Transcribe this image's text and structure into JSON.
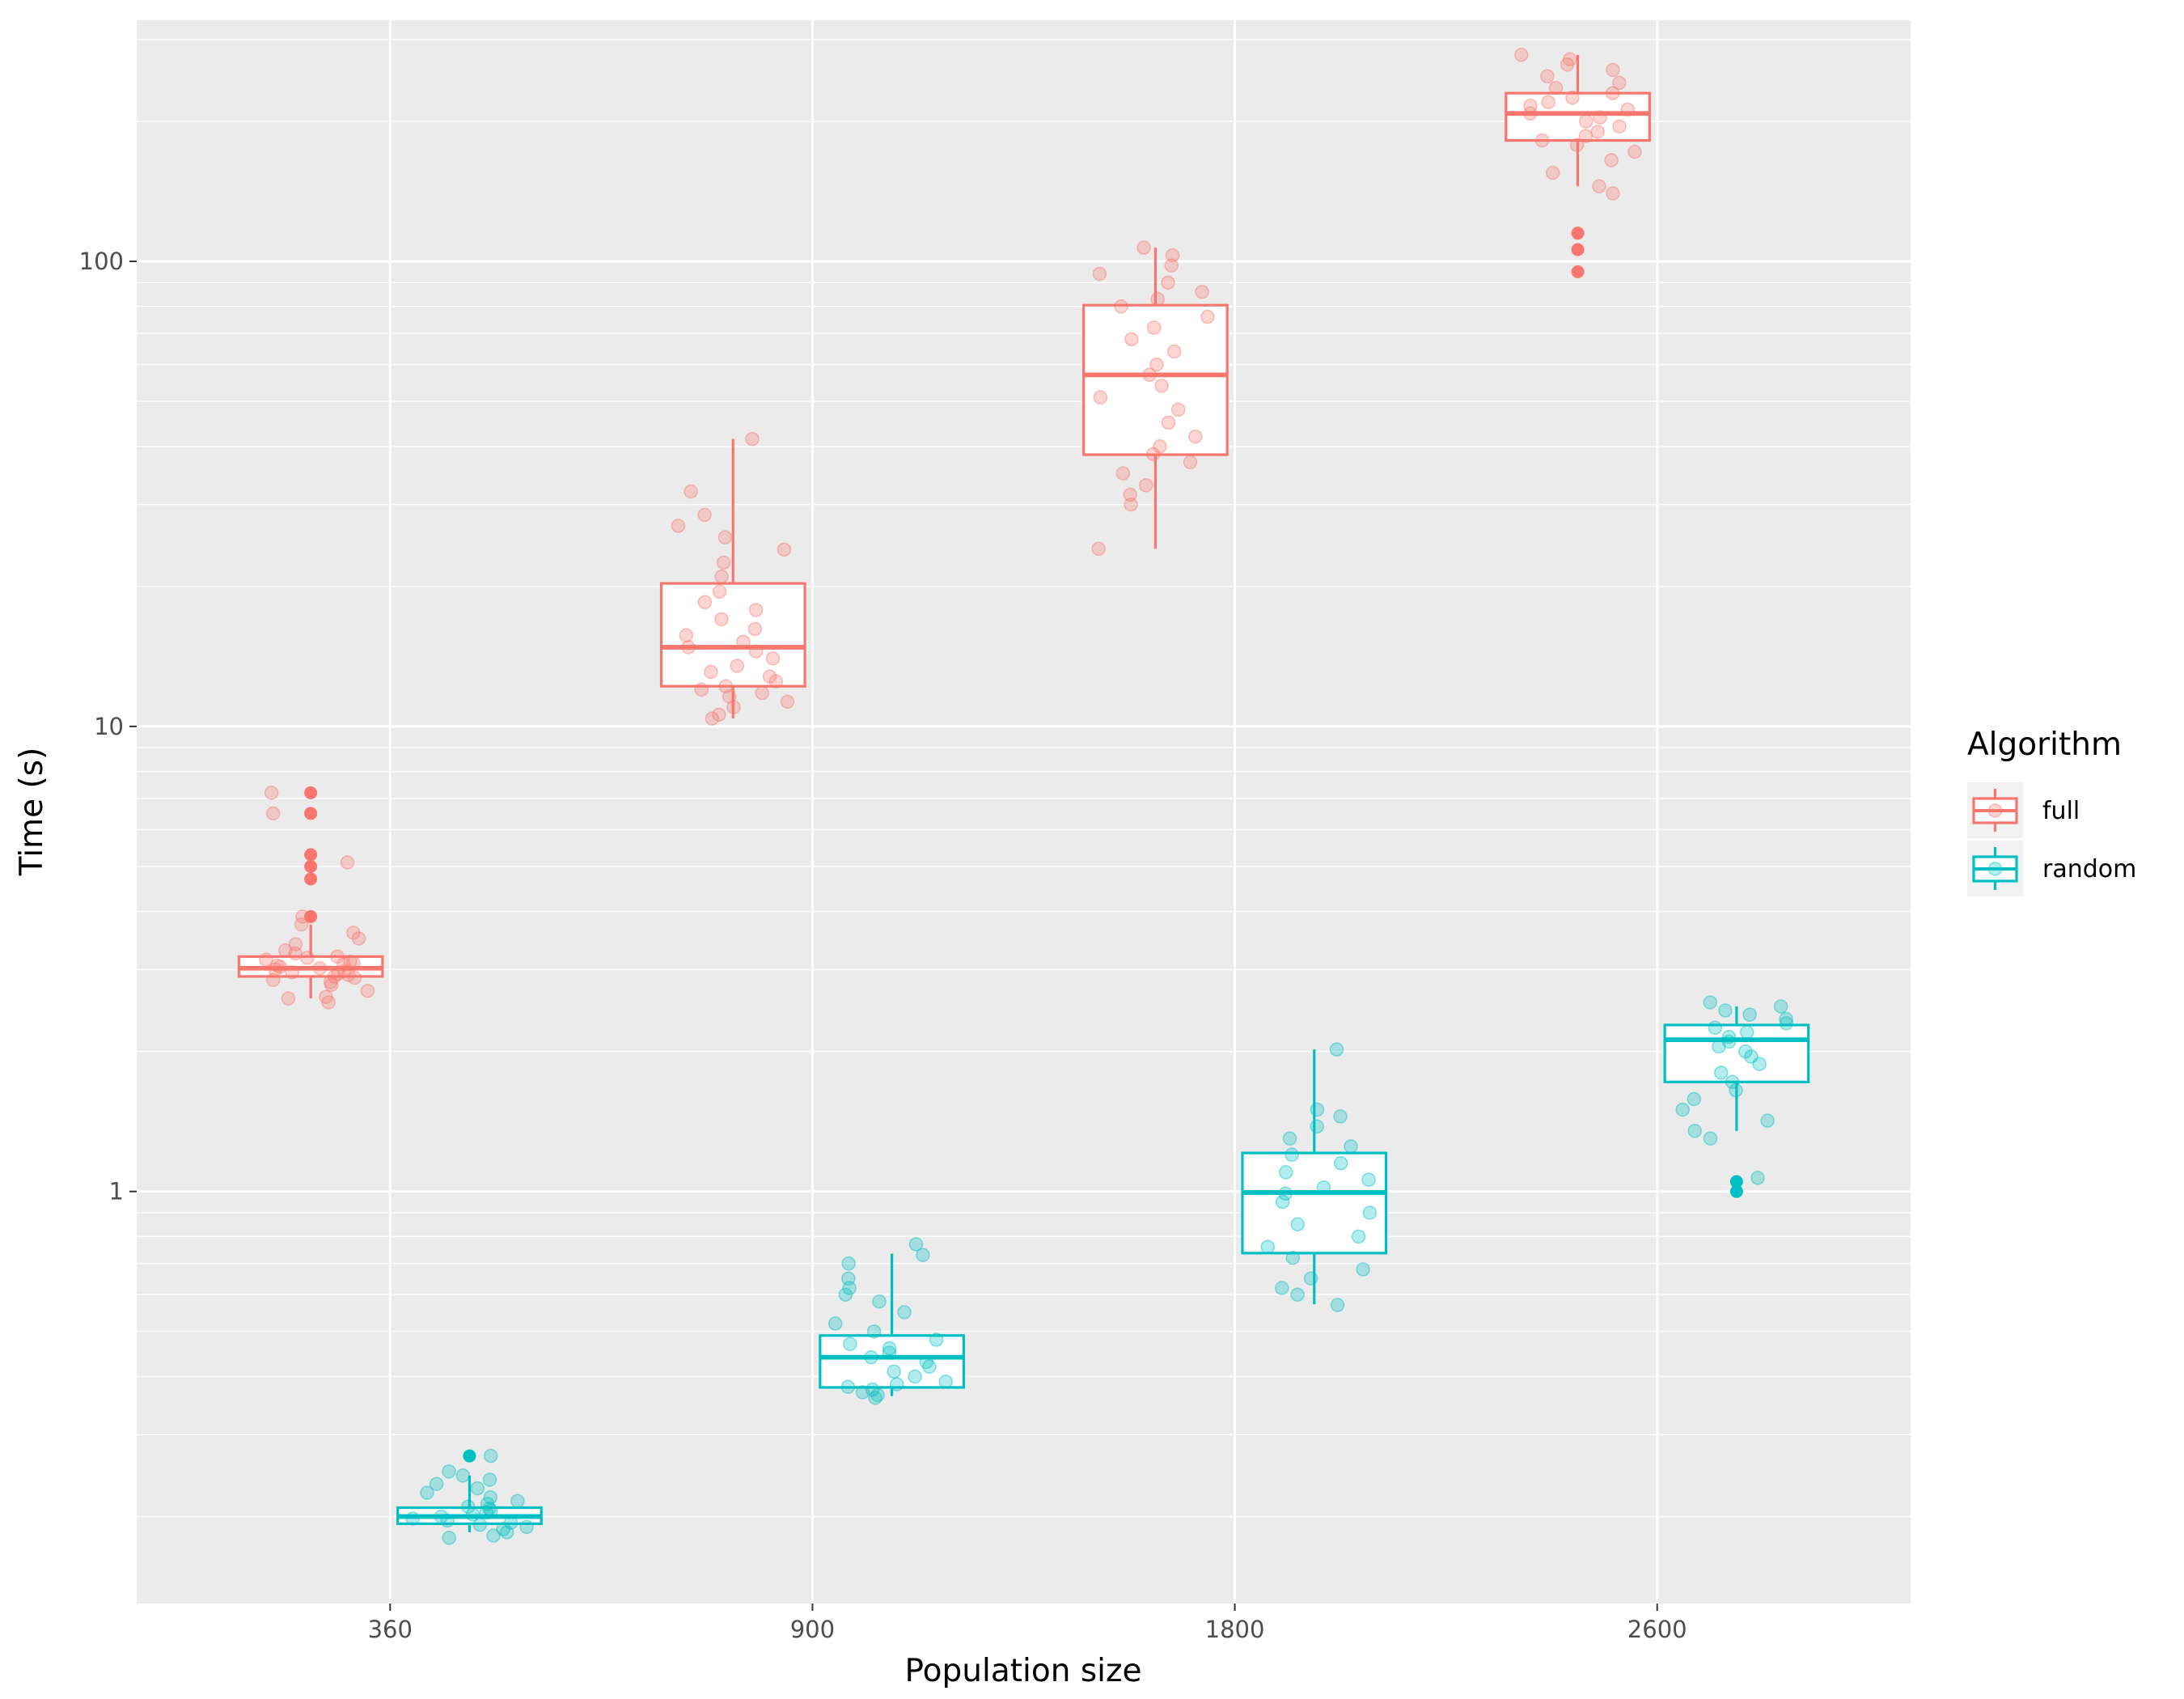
{
  "chart_data": {
    "type": "box",
    "xlabel": "Population size",
    "ylabel": "Time (s)",
    "y_scale": "log10",
    "ylim": [
      0.13,
      330
    ],
    "categories": [
      "360",
      "900",
      "1800",
      "2600"
    ],
    "y_ticks": [
      1,
      10,
      100
    ],
    "y_tick_labels": [
      "1",
      "10",
      "100"
    ],
    "grid": true,
    "legend": {
      "title": "Algorithm",
      "position": "right"
    },
    "series": [
      {
        "name": "full",
        "color": "#F8766D",
        "boxes": [
          {
            "category": "360",
            "lower_whisker": 2.6,
            "q1": 2.9,
            "median": 3.02,
            "q3": 3.2,
            "upper_whisker": 3.75
          },
          {
            "category": "900",
            "lower_whisker": 10.4,
            "q1": 12.2,
            "median": 14.8,
            "q3": 20.3,
            "upper_whisker": 41.5
          },
          {
            "category": "1800",
            "lower_whisker": 24.1,
            "q1": 38.4,
            "median": 57.0,
            "q3": 80.5,
            "upper_whisker": 107
          },
          {
            "category": "2600",
            "lower_whisker": 145,
            "q1": 182,
            "median": 208,
            "q3": 230,
            "upper_whisker": 278
          }
        ],
        "outliers": [
          {
            "category": "360",
            "values": [
              3.9,
              4.7,
              5.0,
              5.3,
              6.5,
              7.2
            ]
          },
          {
            "category": "2600",
            "values": [
              95,
              106,
              115
            ]
          }
        ],
        "points": [
          {
            "category": "360",
            "values": [
              2.55,
              2.6,
              2.62,
              2.7,
              2.78,
              2.82,
              2.85,
              2.88,
              2.9,
              2.92,
              2.94,
              2.96,
              2.98,
              3.0,
              3.02,
              3.04,
              3.06,
              3.08,
              3.1,
              3.12,
              3.15,
              3.18,
              3.2,
              3.25,
              3.3,
              3.4,
              3.5,
              3.6,
              3.75,
              3.9,
              5.1,
              6.5,
              7.2
            ]
          },
          {
            "category": "900",
            "values": [
              10.4,
              10.6,
              11.0,
              11.3,
              11.6,
              11.8,
              12.0,
              12.2,
              12.5,
              12.8,
              13.1,
              13.5,
              14.0,
              14.5,
              14.8,
              15.2,
              15.7,
              16.2,
              17.0,
              17.8,
              18.5,
              19.5,
              21.0,
              22.5,
              24.0,
              25.5,
              27.0,
              28.5,
              32.0,
              41.5
            ]
          },
          {
            "category": "1800",
            "values": [
              24.1,
              30.0,
              31.5,
              33.0,
              35.0,
              37.0,
              38.5,
              40.0,
              42.0,
              45.0,
              48.0,
              51.0,
              54.0,
              57.0,
              60.0,
              64.0,
              68.0,
              72.0,
              76.0,
              80.0,
              83.0,
              86.0,
              90.0,
              94.0,
              98.0,
              103.0,
              107.0
            ]
          },
          {
            "category": "2600",
            "values": [
              140,
              145,
              155,
              165,
              172,
              178,
              182,
              186,
              190,
              195,
              200,
              204,
              208,
              212,
              216,
              220,
              225,
              230,
              236,
              242,
              250,
              258,
              265,
              272,
              278
            ]
          }
        ]
      },
      {
        "name": "random",
        "color": "#00BFC4",
        "boxes": [
          {
            "category": "360",
            "lower_whisker": 0.185,
            "q1": 0.193,
            "median": 0.2,
            "q3": 0.209,
            "upper_whisker": 0.245
          },
          {
            "category": "900",
            "lower_whisker": 0.363,
            "q1": 0.379,
            "median": 0.44,
            "q3": 0.49,
            "upper_whisker": 0.735
          },
          {
            "category": "1800",
            "lower_whisker": 0.572,
            "q1": 0.737,
            "median": 0.995,
            "q3": 1.21,
            "upper_whisker": 2.02
          },
          {
            "category": "2600",
            "lower_whisker": 1.35,
            "q1": 1.72,
            "median": 2.12,
            "q3": 2.28,
            "upper_whisker": 2.5
          }
        ],
        "outliers": [
          {
            "category": "360",
            "values": [
              0.27
            ]
          },
          {
            "category": "2600",
            "values": [
              1.0,
              1.05
            ]
          }
        ],
        "points": [
          {
            "category": "360",
            "values": [
              0.18,
              0.182,
              0.185,
              0.188,
              0.19,
              0.192,
              0.194,
              0.196,
              0.198,
              0.2,
              0.202,
              0.204,
              0.206,
              0.208,
              0.21,
              0.213,
              0.216,
              0.22,
              0.225,
              0.23,
              0.235,
              0.24,
              0.245,
              0.25,
              0.27
            ]
          },
          {
            "category": "900",
            "values": [
              0.36,
              0.365,
              0.37,
              0.375,
              0.38,
              0.385,
              0.39,
              0.4,
              0.41,
              0.42,
              0.43,
              0.44,
              0.45,
              0.46,
              0.47,
              0.48,
              0.5,
              0.52,
              0.55,
              0.58,
              0.6,
              0.62,
              0.65,
              0.7,
              0.73,
              0.77
            ]
          },
          {
            "category": "1800",
            "values": [
              0.57,
              0.6,
              0.62,
              0.65,
              0.68,
              0.72,
              0.76,
              0.8,
              0.85,
              0.9,
              0.95,
              0.99,
              1.02,
              1.06,
              1.1,
              1.15,
              1.2,
              1.25,
              1.3,
              1.38,
              1.45,
              1.5,
              2.02
            ]
          },
          {
            "category": "2600",
            "values": [
              1.07,
              1.3,
              1.35,
              1.42,
              1.5,
              1.58,
              1.65,
              1.72,
              1.8,
              1.88,
              1.95,
              2.0,
              2.05,
              2.1,
              2.15,
              2.2,
              2.25,
              2.3,
              2.35,
              2.4,
              2.45,
              2.5,
              2.55
            ]
          }
        ]
      }
    ]
  }
}
